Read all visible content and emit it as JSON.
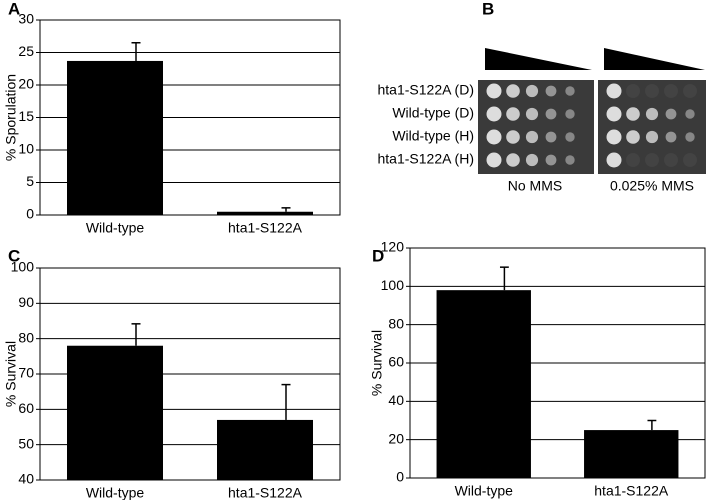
{
  "chart_data": [
    {
      "type": "bar",
      "panel": "A",
      "y_label": "% Sporulation",
      "categories": [
        "Wild-type",
        "hta1-S122A"
      ],
      "values": [
        23.7,
        0.5
      ],
      "errors": [
        2.8,
        0.6
      ],
      "color": "#000000",
      "ylim": [
        0,
        30
      ],
      "yticks": [
        0,
        5,
        10,
        15,
        20,
        25,
        30
      ],
      "grid": true
    },
    {
      "type": "bar",
      "panel": "C",
      "y_label": "% Survival",
      "categories": [
        "Wild-type",
        "hta1-S122A"
      ],
      "values": [
        78,
        57
      ],
      "errors": [
        6.2,
        10
      ],
      "color": "#000000",
      "ylim": [
        40,
        100
      ],
      "yticks": [
        40,
        50,
        60,
        70,
        80,
        90,
        100
      ],
      "grid": true
    },
    {
      "type": "bar",
      "panel": "D",
      "y_label": "% Survival",
      "categories": [
        "Wild-type",
        "hta1-S122A"
      ],
      "values": [
        98,
        25
      ],
      "errors": [
        12,
        5
      ],
      "color": "#000000",
      "ylim": [
        0,
        120
      ],
      "yticks": [
        0,
        20,
        40,
        60,
        80,
        100,
        120
      ],
      "grid": true
    }
  ],
  "spot_assay": {
    "panel": "B",
    "rows": [
      "hta1-S122A (D)",
      "Wild-type (D)",
      "Wild-type (H)",
      "hta1-S122A (H)"
    ],
    "columns": [
      "No MMS",
      "0.025% MMS"
    ]
  }
}
